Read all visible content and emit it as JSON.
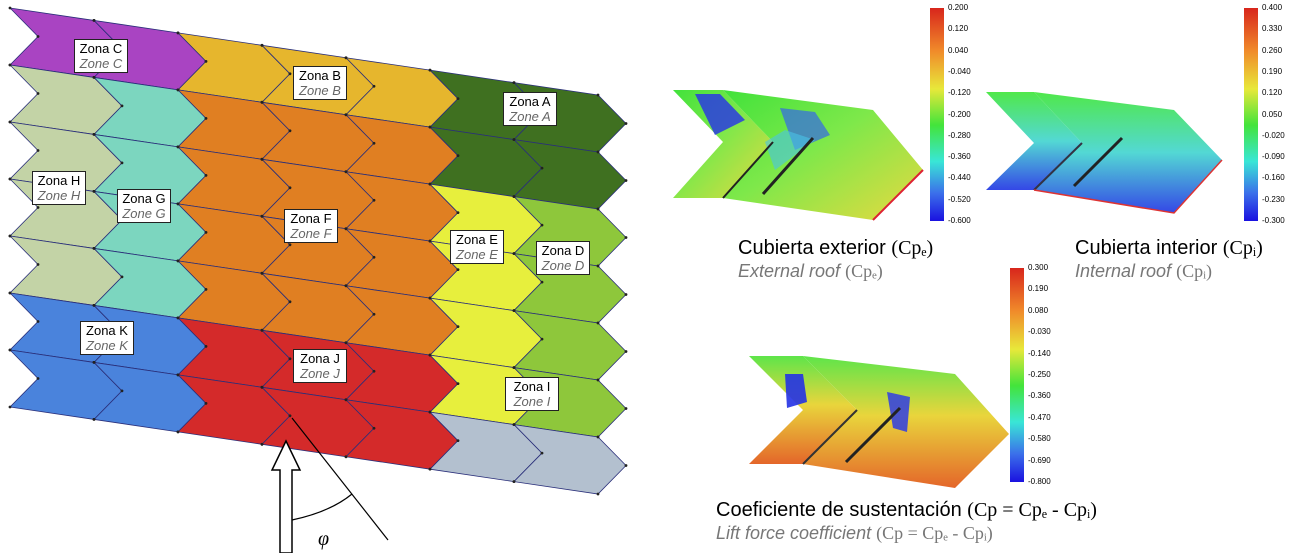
{
  "zones": [
    {
      "id": "C",
      "es": "Zona C",
      "en": "Zone C",
      "color": "#a944c2"
    },
    {
      "id": "B",
      "es": "Zona B",
      "en": "Zone B",
      "color": "#e6b62d"
    },
    {
      "id": "A",
      "es": "Zona A",
      "en": "Zone A",
      "color": "#3f7020"
    },
    {
      "id": "H",
      "es": "Zona H",
      "en": "Zone H",
      "color": "#c3d3a6"
    },
    {
      "id": "G",
      "es": "Zona G",
      "en": "Zone G",
      "color": "#7cd6bf"
    },
    {
      "id": "F",
      "es": "Zona F",
      "en": "Zone F",
      "color": "#e07f22"
    },
    {
      "id": "E",
      "es": "Zona E",
      "en": "Zone E",
      "color": "#e7ef3d"
    },
    {
      "id": "D",
      "es": "Zona D",
      "en": "Zone D",
      "color": "#8ec73b"
    },
    {
      "id": "K",
      "es": "Zona K",
      "en": "Zone K",
      "color": "#4a83dc"
    },
    {
      "id": "J",
      "es": "Zona J",
      "en": "Zone J",
      "color": "#d42a2a"
    },
    {
      "id": "I",
      "es": "Zona I",
      "en": "Zone I",
      "color": "#b3c0cf"
    }
  ],
  "wind_angle_symbol": "φ",
  "contour_plots": [
    {
      "id": "external",
      "caption_es": "Cubierta exterior",
      "caption_en": "External roof",
      "symbol": "(Cpₑ)",
      "scale": [
        "0.200",
        "0.120",
        "0.040",
        "-0.040",
        "-0.120",
        "-0.200",
        "-0.280",
        "-0.360",
        "-0.440",
        "-0.520",
        "-0.600"
      ]
    },
    {
      "id": "internal",
      "caption_es": "Cubierta interior",
      "caption_en": "Internal roof",
      "symbol": "(Cpᵢ)",
      "scale": [
        "0.400",
        "0.330",
        "0.260",
        "0.190",
        "0.120",
        "0.050",
        "-0.020",
        "-0.090",
        "-0.160",
        "-0.230",
        "-0.300"
      ]
    },
    {
      "id": "lift",
      "caption_es": "Coeficiente de sustentación",
      "caption_en": "Lift force coefficient",
      "symbol": "(Cp = Cpₑ  -  Cpᵢ)",
      "scale": [
        "0.300",
        "0.190",
        "0.080",
        "-0.030",
        "-0.140",
        "-0.250",
        "-0.360",
        "-0.470",
        "-0.580",
        "-0.690",
        "-0.800"
      ]
    }
  ]
}
